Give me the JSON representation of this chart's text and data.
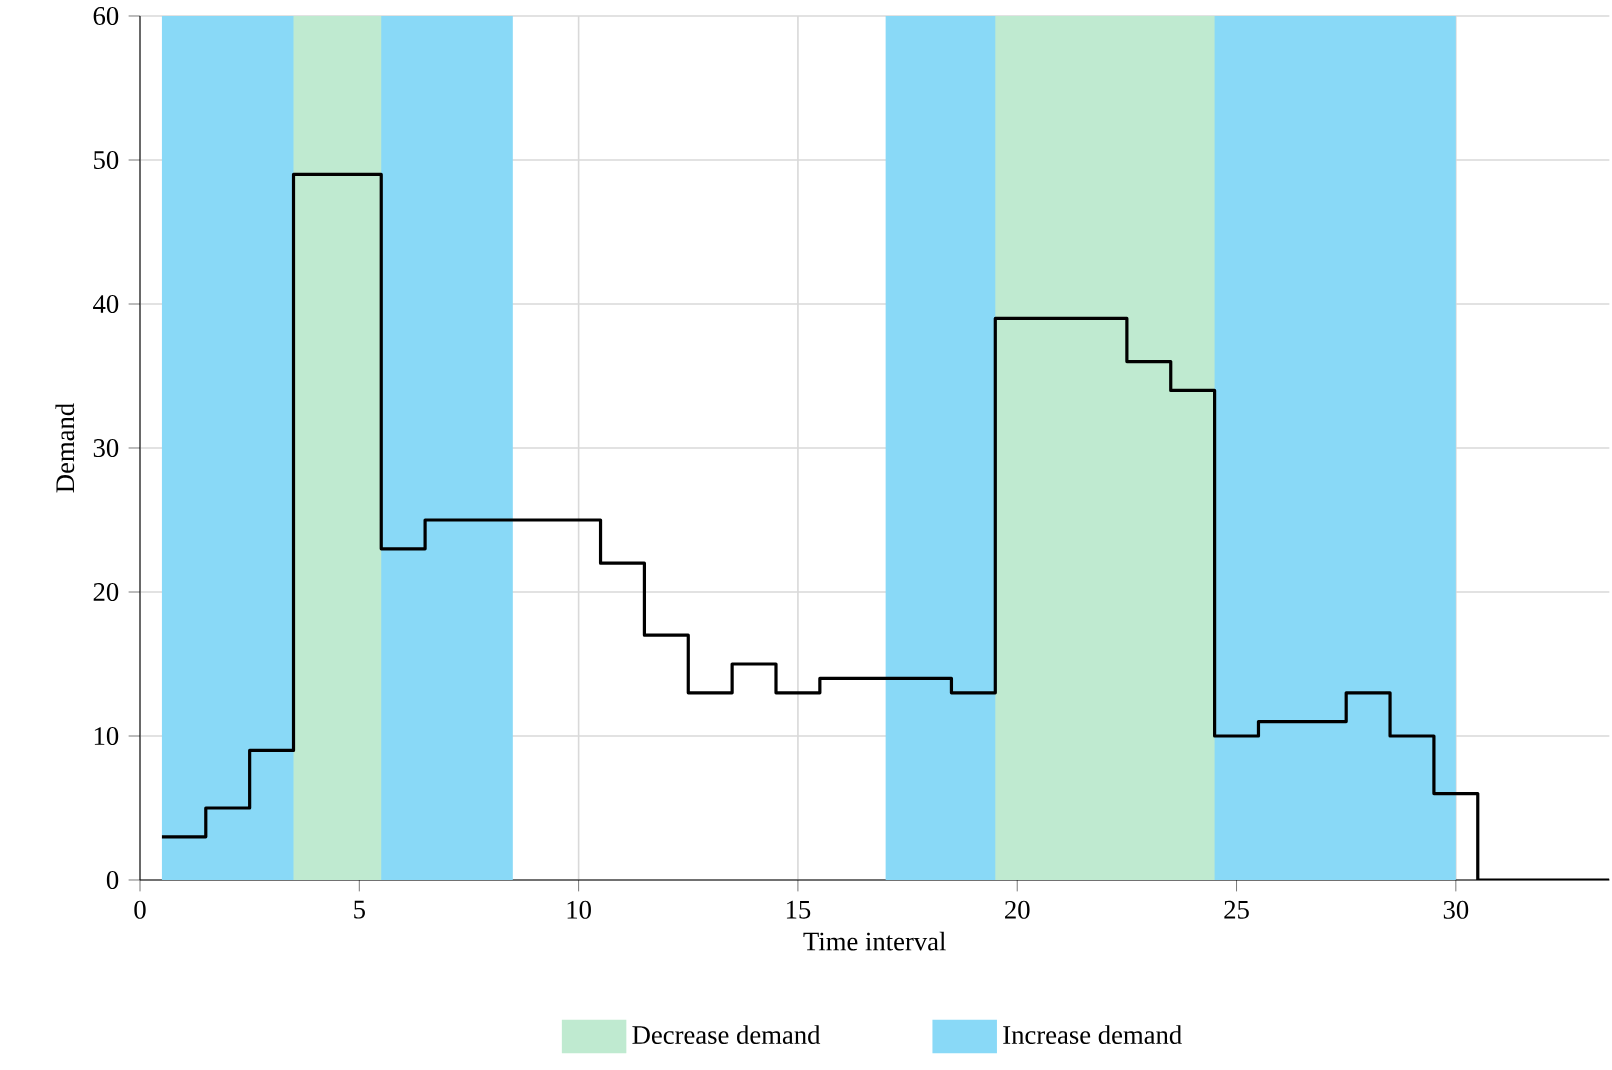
{
  "chart_data": {
    "type": "step",
    "xlabel": "Time interval",
    "ylabel": "Demand",
    "x": [
      0.5,
      1.5,
      2.5,
      3.5,
      4.5,
      5.5,
      6.5,
      7.5,
      8.5,
      9.5,
      10.5,
      11.5,
      12.5,
      13.5,
      14.5,
      15.5,
      16.5,
      17.5,
      18.5,
      19.5,
      20.5,
      21.5,
      22.5,
      23.5,
      24.5,
      25.5,
      26.5,
      27.5,
      28.5,
      29.5,
      30.5,
      33.5
    ],
    "series": [
      {
        "color": "#000000",
        "values": [
          3,
          5,
          9,
          49,
          49,
          23,
          25,
          25,
          25,
          25,
          22,
          17,
          13,
          15,
          13,
          14,
          14,
          14,
          13,
          39,
          39,
          39,
          36,
          34,
          10,
          11,
          11,
          13,
          10,
          6,
          0,
          0
        ]
      }
    ],
    "xlim": [
      0,
      33.5
    ],
    "ylim": [
      0,
      60
    ],
    "xticks": [
      0,
      5,
      10,
      15,
      20,
      25,
      30
    ],
    "yticks": [
      0,
      10,
      20,
      30,
      40,
      50,
      60
    ],
    "bands": [
      {
        "axis": "x",
        "from": 0.5,
        "to": 8.5,
        "label": "Increase demand",
        "color": "#89d9f7"
      },
      {
        "axis": "x",
        "from": 3.5,
        "to": 5.5,
        "label": "Decrease demand",
        "color": "#bfead0"
      },
      {
        "axis": "x",
        "from": 17,
        "to": 30,
        "color": "#89d9f7"
      },
      {
        "axis": "x",
        "from": 19.5,
        "to": 24.5,
        "color": "#bfead0"
      }
    ],
    "grid": true,
    "legend": "bottom",
    "line_style": "solid",
    "marker": "none"
  }
}
